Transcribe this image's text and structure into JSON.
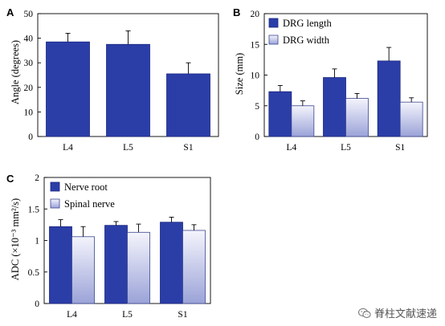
{
  "colors": {
    "dark_bar": "#2b3ea8",
    "dark_bar_edge": "#1a2680",
    "light_bar_top": "#f4f4fc",
    "light_bar_bottom": "#9ba3d8",
    "light_bar_edge": "#3a4690"
  },
  "chart_data": [
    {
      "panel": "A",
      "type": "bar",
      "categories": [
        "L4",
        "L5",
        "S1"
      ],
      "series": [
        {
          "values": [
            38.5,
            37.5,
            25.5
          ],
          "errors": [
            3.5,
            5.5,
            4.5
          ],
          "style": "dark"
        }
      ],
      "ylabel": "Angle (degrees)",
      "ylim": [
        0,
        50
      ],
      "yticks": [
        "0",
        "10",
        "20",
        "30",
        "40",
        "50"
      ],
      "yticks_values": [
        0,
        10,
        20,
        30,
        40,
        50
      ],
      "grid": false
    },
    {
      "panel": "B",
      "type": "bar",
      "categories": [
        "L4",
        "L5",
        "S1"
      ],
      "series": [
        {
          "name": "DRG length",
          "values": [
            7.3,
            9.6,
            12.3
          ],
          "errors": [
            1.0,
            1.4,
            2.2
          ],
          "style": "dark"
        },
        {
          "name": "DRG width",
          "values": [
            5.0,
            6.2,
            5.6
          ],
          "errors": [
            0.8,
            0.8,
            0.7
          ],
          "style": "light"
        }
      ],
      "ylabel": "Size (mm)",
      "ylim": [
        0,
        20
      ],
      "yticks": [
        "0",
        "5",
        "10",
        "15",
        "20"
      ],
      "yticks_values": [
        0,
        5,
        10,
        15,
        20
      ],
      "legend": "top-left",
      "grid": false
    },
    {
      "panel": "C",
      "type": "bar",
      "categories": [
        "L4",
        "L5",
        "S1"
      ],
      "series": [
        {
          "name": "Nerve root",
          "values": [
            1.22,
            1.24,
            1.29
          ],
          "errors": [
            0.11,
            0.06,
            0.08
          ],
          "style": "dark"
        },
        {
          "name": "Spinal nerve",
          "values": [
            1.06,
            1.13,
            1.16
          ],
          "errors": [
            0.16,
            0.13,
            0.09
          ],
          "style": "light"
        }
      ],
      "ylabel": "ADC (×10⁻³ mm²/s)",
      "ylim": [
        0,
        2
      ],
      "yticks": [
        "0",
        "0.5",
        "1",
        "1.5",
        "2"
      ],
      "yticks_values": [
        0,
        0.5,
        1,
        1.5,
        2
      ],
      "legend": "top-left",
      "grid": false
    }
  ],
  "watermark": {
    "text": "脊柱文献速递",
    "icon": "wechat-icon"
  }
}
